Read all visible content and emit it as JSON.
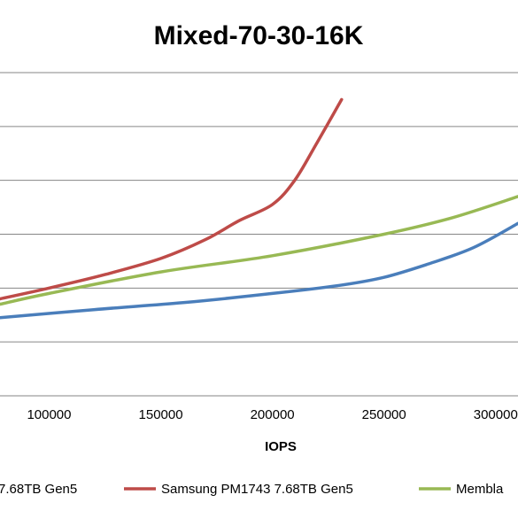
{
  "chart_data": {
    "type": "line",
    "title": "Mixed-70-30-16K",
    "xlabel": "IOPS",
    "ylabel": "",
    "xlim": [
      78000,
      310000
    ],
    "ylim": [
      0,
      6
    ],
    "x_ticks": [
      100000,
      150000,
      200000,
      250000,
      300000
    ],
    "x_tick_labels": [
      "100000",
      "150000",
      "200000",
      "250000",
      "300000"
    ],
    "y_gridlines": [
      1,
      2,
      3,
      4,
      5,
      6
    ],
    "grid": true,
    "legend_position": "bottom",
    "series": [
      {
        "name": "7.68TB Gen5",
        "color": "#4a7ebb",
        "x": [
          78000,
          120000,
          160000,
          200000,
          230000,
          250000,
          270000,
          290000,
          310000
        ],
        "y": [
          1.45,
          1.6,
          1.73,
          1.9,
          2.05,
          2.2,
          2.45,
          2.75,
          3.2
        ]
      },
      {
        "name": "Samsung PM1743 7.68TB Gen5",
        "color": "#be4b48",
        "x": [
          78000,
          100000,
          125000,
          150000,
          170000,
          185000,
          200000,
          210000,
          220000,
          231000
        ],
        "y": [
          1.8,
          2.0,
          2.25,
          2.55,
          2.9,
          3.25,
          3.55,
          4.0,
          4.7,
          5.5
        ]
      },
      {
        "name": "Membla",
        "color": "#98b954",
        "x": [
          78000,
          100000,
          150000,
          200000,
          250000,
          280000,
          310000
        ],
        "y": [
          1.7,
          1.9,
          2.3,
          2.6,
          3.0,
          3.3,
          3.7
        ]
      }
    ]
  }
}
